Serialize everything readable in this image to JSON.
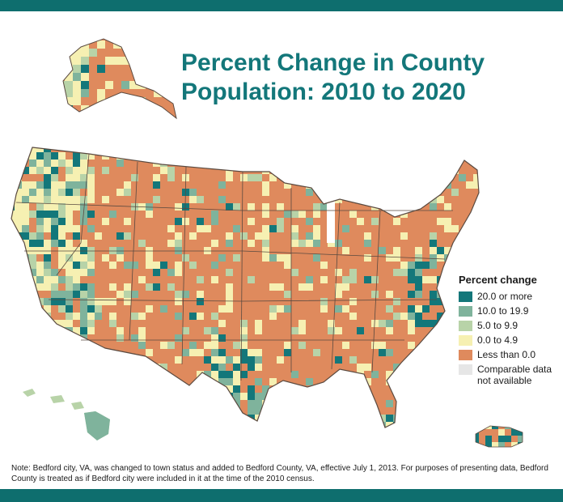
{
  "title_line1": "Percent Change in County",
  "title_line2": "Population: 2010 to 2020",
  "legend": {
    "title": "Percent change",
    "items": [
      {
        "label": "20.0 or more",
        "color": "#13777a"
      },
      {
        "label": "10.0 to 19.9",
        "color": "#7fb39c"
      },
      {
        "label": "5.0 to 9.9",
        "color": "#b8d3a8"
      },
      {
        "label": "0.0 to 4.9",
        "color": "#f6f0b2"
      },
      {
        "label": "Less than 0.0",
        "color": "#df8a5d"
      },
      {
        "label": "Comparable data not available",
        "color": "#e6e6e6"
      }
    ]
  },
  "note": "Note: Bedford city, VA, was changed to town status and added to Bedford County, VA, effective July 1, 2013. For purposes of presenting data, Bedford County is treated as if Bedford city were included in it at the time of the 2010 census.",
  "colors": {
    "band": "#0e6e6e",
    "title": "#13777a",
    "border": "#5a4a40"
  }
}
